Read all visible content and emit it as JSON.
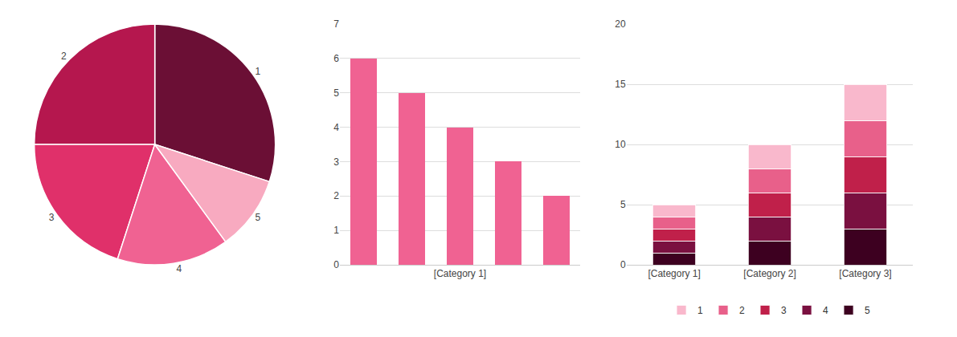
{
  "chart_data": [
    {
      "type": "pie",
      "categories": [
        "1",
        "2",
        "3",
        "4",
        "5"
      ],
      "values": [
        6,
        5,
        4,
        3,
        2
      ],
      "colors": [
        "#6b0f35",
        "#b5174e",
        "#e0306a",
        "#f06292",
        "#f8aac0"
      ]
    },
    {
      "type": "bar",
      "categories": [
        null,
        null,
        "[Category 1]",
        null,
        null
      ],
      "values": [
        6,
        5,
        4,
        3,
        2
      ],
      "color": "#f06292",
      "ylim": [
        0,
        7
      ],
      "yticks": [
        0,
        1,
        2,
        3,
        4,
        5,
        6,
        7
      ],
      "grid": true
    },
    {
      "type": "bar",
      "stacked": true,
      "categories": [
        "[Category 1]",
        "[Category 2]",
        "[Category 3]"
      ],
      "series": [
        {
          "name": "5",
          "color": "#3d0020",
          "values": [
            1,
            2,
            3
          ]
        },
        {
          "name": "4",
          "color": "#7a1040",
          "values": [
            1,
            2,
            3
          ]
        },
        {
          "name": "3",
          "color": "#c0204a",
          "values": [
            1,
            2,
            3
          ]
        },
        {
          "name": "2",
          "color": "#e8608a",
          "values": [
            1,
            2,
            3
          ]
        },
        {
          "name": "1",
          "color": "#f9b8cc",
          "values": [
            1,
            2,
            3
          ]
        }
      ],
      "ylim": [
        0,
        20
      ],
      "yticks": [
        0,
        5,
        10,
        15,
        20
      ],
      "grid": true,
      "legend": "bottom"
    }
  ]
}
